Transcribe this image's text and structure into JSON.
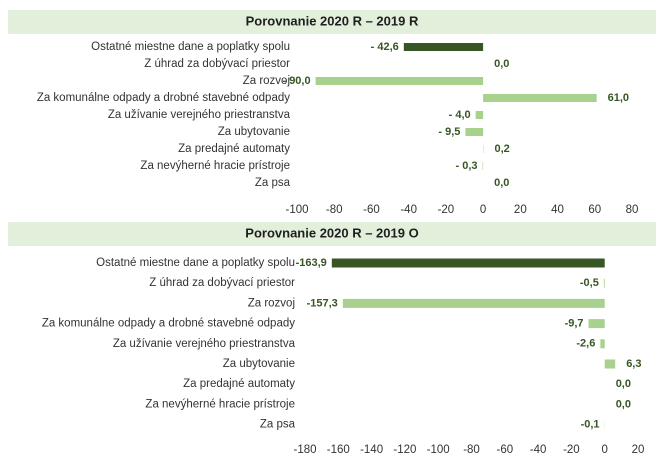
{
  "chart_data": [
    {
      "type": "bar",
      "orientation": "horizontal",
      "title": "Porovnanie 2020 R – 2019 R",
      "categories": [
        "Ostatné miestne dane a poplatky spolu",
        "Z úhrad za dobývací priestor",
        "Za rozvoj",
        "Za komunálne odpady a drobné stavebné odpady",
        "Za užívanie verejného priestranstva",
        "Za ubytovanie",
        "Za predajné automaty",
        "Za nevýherné hracie prístroje",
        "Za psa"
      ],
      "values": [
        -42.6,
        0.0,
        -90.0,
        61.0,
        -4.0,
        -9.5,
        0.2,
        -0.3,
        0.0
      ],
      "value_labels": [
        "- 42,6",
        "0,0",
        "- 90,0",
        "61,0",
        "- 4,0",
        "- 9,5",
        "0,2",
        "- 0,3",
        "0,0"
      ],
      "colors": [
        "#375623",
        "#a9d18e",
        "#a9d18e",
        "#a9d18e",
        "#a9d18e",
        "#a9d18e",
        "#a9d18e",
        "#a9d18e",
        "#a9d18e"
      ],
      "xlim": [
        -100,
        80
      ],
      "xticks": [
        -100,
        -80,
        -60,
        -40,
        -20,
        0,
        20,
        40,
        60,
        80
      ]
    },
    {
      "type": "bar",
      "orientation": "horizontal",
      "title": "Porovnanie 2020 R – 2019 O",
      "categories": [
        "Ostatné miestne dane a poplatky spolu",
        "Z úhrad za dobývací priestor",
        "Za rozvoj",
        "Za komunálne odpady a drobné stavebné odpady",
        "Za užívanie verejného priestranstva",
        "Za ubytovanie",
        "Za predajné automaty",
        "Za nevýherné hracie prístroje",
        "Za psa"
      ],
      "values": [
        -163.9,
        -0.5,
        -157.3,
        -9.7,
        -2.6,
        6.3,
        0.0,
        0.0,
        -0.1
      ],
      "value_labels": [
        "-163,9",
        "-0,5",
        "-157,3",
        "-9,7",
        "-2,6",
        "6,3",
        "0,0",
        "0,0",
        "-0,1"
      ],
      "colors": [
        "#375623",
        "#a9d18e",
        "#a9d18e",
        "#a9d18e",
        "#a9d18e",
        "#a9d18e",
        "#a9d18e",
        "#a9d18e",
        "#a9d18e"
      ],
      "xlim": [
        -180,
        20
      ],
      "xticks": [
        -180,
        -160,
        -140,
        -120,
        -100,
        -80,
        -60,
        -40,
        -20,
        0,
        20
      ]
    }
  ]
}
